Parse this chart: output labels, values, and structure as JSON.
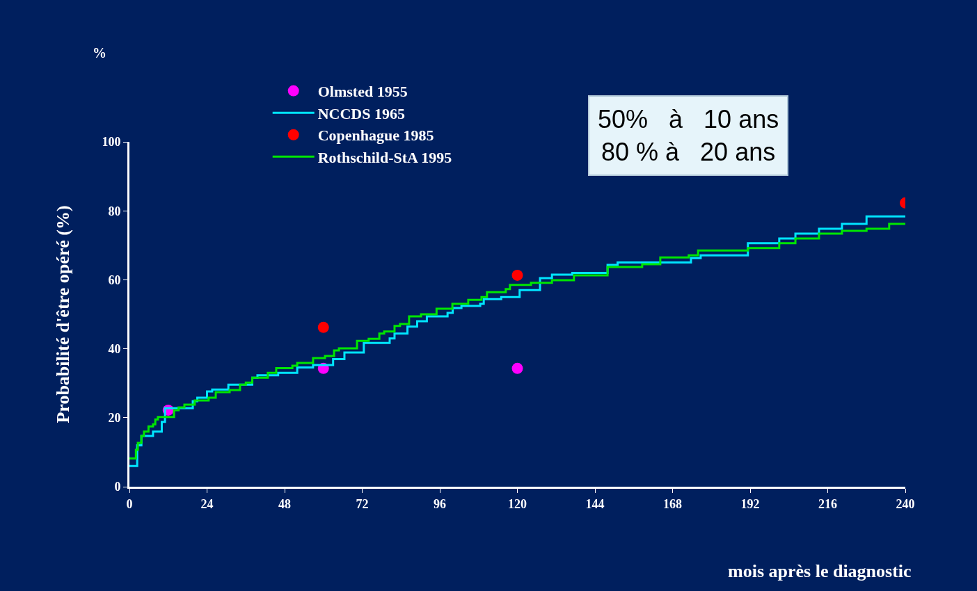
{
  "chart_data": {
    "type": "step",
    "ylabel": "Probabilité d'être opéré (%)",
    "xlabel": "mois après le diagnostic",
    "annotations": [
      "%",
      "50%   à   10 ans\n80 % à   20 ans"
    ],
    "xlim": [
      0,
      240
    ],
    "xticks": [
      0,
      24,
      48,
      72,
      96,
      120,
      144,
      168,
      192,
      216,
      240
    ],
    "ylim": [
      0,
      100
    ],
    "yticks": [
      0,
      20,
      40,
      60,
      80,
      100
    ],
    "grid": false,
    "legend": "top left",
    "series": [
      {
        "name": "Olmsted 1955",
        "type": "scatter",
        "marker": "circle",
        "color": "#ff00ff",
        "x": [
          12,
          60,
          120
        ],
        "values": [
          22.2,
          34.3,
          34.3
        ]
      },
      {
        "name": "NCCDS 1965",
        "color": "#00e5ff",
        "x": [
          0,
          2.4,
          3.7,
          7.3,
          10,
          11,
          19.6,
          21,
          24,
          25.6,
          30.6,
          38,
          39.6,
          46,
          51.9,
          56.8,
          63,
          66.5,
          72.5,
          80.5,
          82,
          86,
          89,
          92,
          98.4,
          100,
          102.7,
          108.5,
          109.6,
          115,
          120.7,
          127,
          130.7,
          137,
          147.9,
          151,
          158.6,
          173.7,
          176.7,
          191.3,
          201,
          206,
          213.3,
          220.4,
          228,
          240
        ],
        "values": [
          6,
          12,
          14.7,
          16,
          18.8,
          22.8,
          24.8,
          25.8,
          27.6,
          28.2,
          29.6,
          31.6,
          32.3,
          33,
          34.6,
          35.3,
          37,
          38.9,
          41.7,
          43,
          44.4,
          46.4,
          48,
          49.4,
          50.4,
          51.8,
          52.4,
          53,
          54.4,
          55,
          57,
          60.5,
          61.5,
          62,
          64.3,
          65,
          65,
          66.3,
          67.1,
          70.6,
          72,
          73.4,
          74.8,
          76.2,
          78.4,
          78.4
        ]
      },
      {
        "name": "Copenhague 1985",
        "type": "scatter",
        "marker": "circle",
        "color": "#ff0000",
        "x": [
          60,
          120,
          240
        ],
        "values": [
          46.2,
          61.3,
          82.3
        ]
      },
      {
        "name": "Rothschild-StA 1995",
        "color": "#00e600",
        "x": [
          0,
          2,
          2.6,
          3.7,
          4.5,
          5.9,
          7.3,
          8,
          8.8,
          13.8,
          15.2,
          17,
          20.2,
          24.5,
          26.7,
          31,
          34.2,
          36,
          38,
          42.8,
          45.4,
          50.4,
          51.9,
          56.8,
          60.5,
          63.3,
          64.8,
          70.4,
          74,
          77.3,
          78.8,
          82,
          83.7,
          86.5,
          90.2,
          95,
          99.9,
          104.8,
          108.9,
          110.6,
          116.4,
          117.7,
          124.2,
          130.7,
          137.5,
          147.9,
          158.6,
          164.2,
          173,
          175.9,
          191.3,
          201,
          206,
          213.3,
          220.4,
          228,
          235,
          240
        ],
        "values": [
          8.2,
          10.7,
          12.7,
          14.7,
          16,
          17.5,
          18.1,
          19.5,
          20.2,
          22.2,
          23,
          23.8,
          25,
          25.8,
          27.4,
          28,
          29.6,
          30.2,
          31.6,
          33,
          34.4,
          35.1,
          35.9,
          37.3,
          37.9,
          39.5,
          40.1,
          42.3,
          42.9,
          44.4,
          45,
          46.6,
          47.2,
          49.4,
          50,
          51.6,
          53,
          54.2,
          55,
          56.4,
          57.3,
          58.5,
          59.1,
          59.9,
          61.3,
          63.7,
          64.5,
          66.5,
          67.1,
          68.5,
          69.2,
          70.6,
          72,
          73.4,
          74.2,
          74.8,
          76.2,
          76.2
        ]
      }
    ]
  }
}
